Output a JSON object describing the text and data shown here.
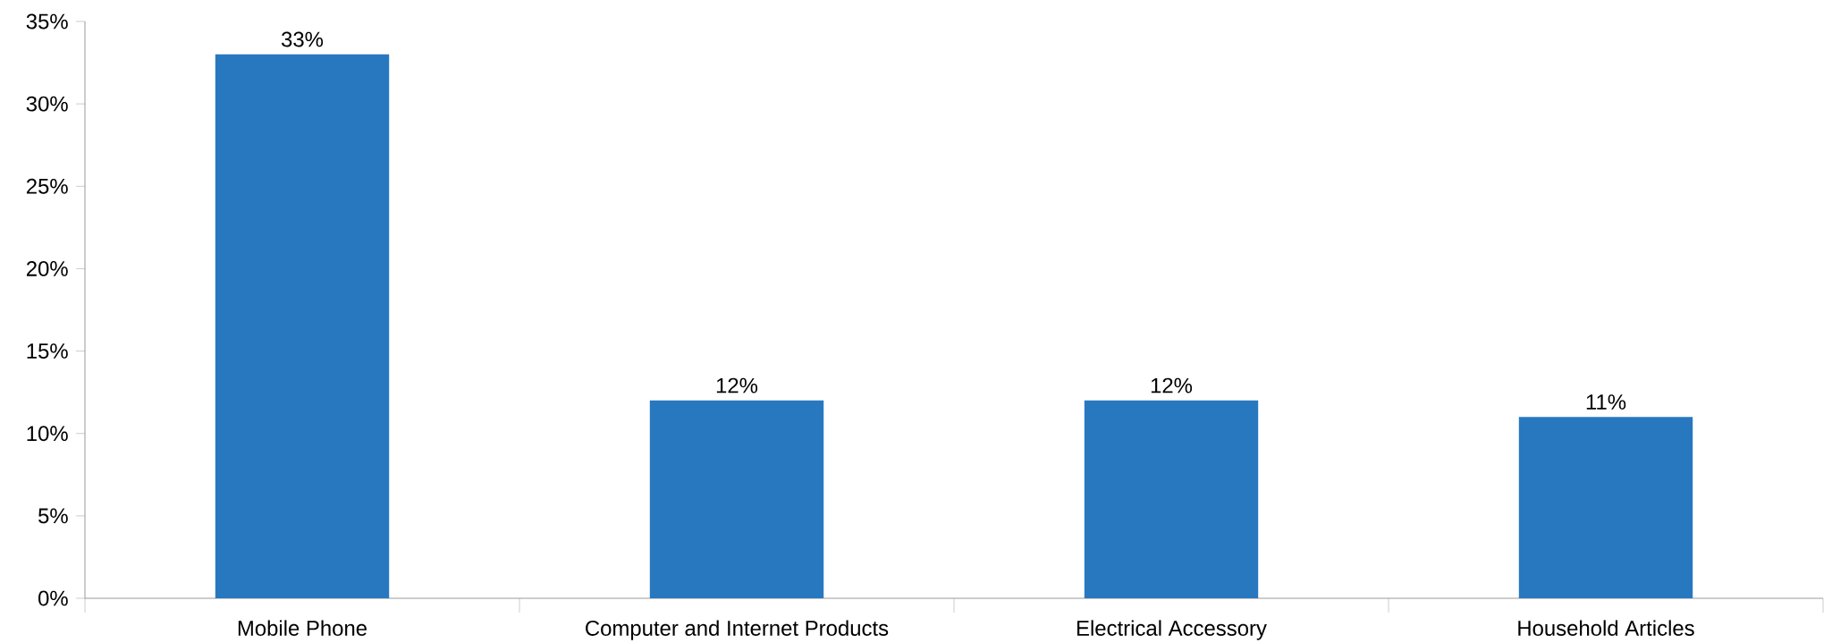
{
  "chart_data": {
    "type": "bar",
    "categories": [
      "Mobile Phone",
      "Computer and Internet Products",
      "Electrical Accessory",
      "Household Articles"
    ],
    "values": [
      33,
      12,
      12,
      11
    ],
    "value_labels": [
      "33%",
      "12%",
      "12%",
      "11%"
    ],
    "color": "#2878c0",
    "ylim": [
      0,
      35
    ],
    "yticks": [
      {
        "value": 0,
        "label": "0%"
      },
      {
        "value": 5,
        "label": "5%"
      },
      {
        "value": 10,
        "label": "10%"
      },
      {
        "value": 15,
        "label": "15%"
      },
      {
        "value": 20,
        "label": "20%"
      },
      {
        "value": 25,
        "label": "25%"
      },
      {
        "value": 30,
        "label": "30%"
      },
      {
        "value": 35,
        "label": "35%"
      }
    ],
    "grid": false
  }
}
